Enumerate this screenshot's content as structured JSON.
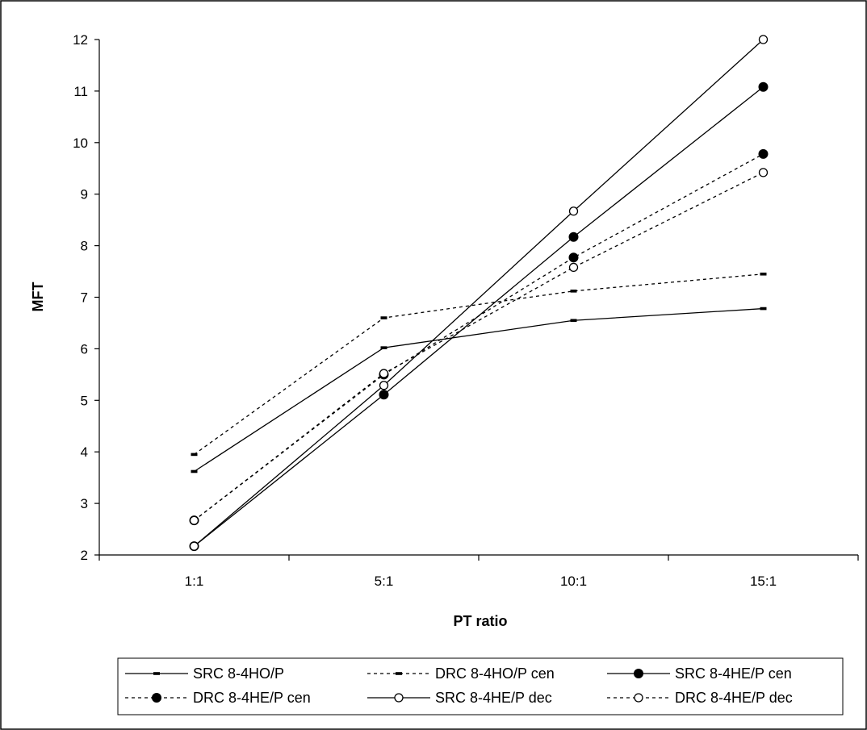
{
  "chart_data": {
    "type": "line",
    "title": "",
    "xlabel": "PT ratio",
    "ylabel": "MFT",
    "categories": [
      "1:1",
      "5:1",
      "10:1",
      "15:1"
    ],
    "ylim": [
      2,
      12
    ],
    "yticks": [
      2,
      3,
      4,
      5,
      6,
      7,
      8,
      9,
      10,
      11,
      12
    ],
    "grid": false,
    "legend_position": "bottom",
    "series": [
      {
        "name": "SRC 8-4HO/P",
        "values": [
          3.62,
          6.02,
          6.55,
          6.78
        ],
        "line": "solid",
        "marker": "dash"
      },
      {
        "name": "DRC 8-4HO/P cen",
        "values": [
          3.95,
          6.6,
          7.12,
          7.45
        ],
        "line": "dotted",
        "marker": "dash"
      },
      {
        "name": "SRC 8-4HE/P cen",
        "values": [
          2.17,
          5.11,
          8.17,
          11.08
        ],
        "line": "solid",
        "marker": "filled-circle"
      },
      {
        "name": "DRC 8-4HE/P cen",
        "values": [
          2.67,
          5.5,
          7.77,
          9.78
        ],
        "line": "dotted",
        "marker": "filled-circle"
      },
      {
        "name": "SRC 8-4HE/P dec",
        "values": [
          2.17,
          5.29,
          8.67,
          12.0
        ],
        "line": "solid",
        "marker": "open-circle"
      },
      {
        "name": "DRC 8-4HE/P dec",
        "values": [
          2.67,
          5.52,
          7.58,
          9.42
        ],
        "line": "dotted",
        "marker": "open-circle"
      }
    ]
  }
}
